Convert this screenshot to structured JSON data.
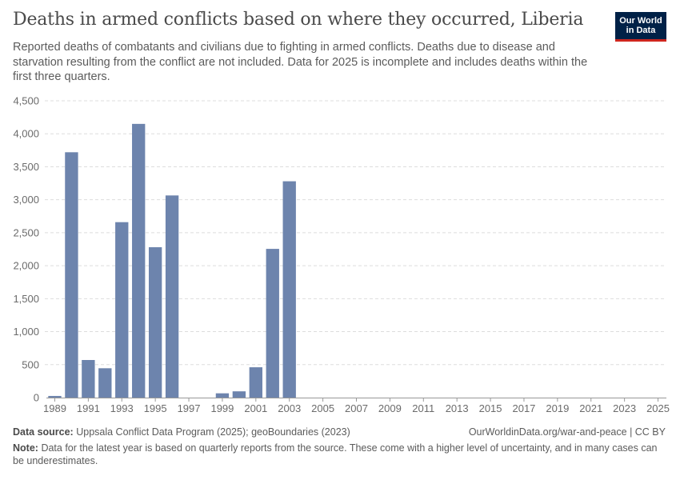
{
  "header": {
    "title": "Deaths in armed conflicts based on where they occurred, Liberia",
    "subtitle": "Reported deaths of combatants and civilians due to fighting in armed conflicts. Deaths due to disease and starvation resulting from the conflict are not included. Data for 2025 is incomplete and includes deaths within the first three quarters."
  },
  "logo": {
    "line1": "Our World",
    "line2": "in Data"
  },
  "footer": {
    "source_label": "Data source:",
    "source_text": "Uppsala Conflict Data Program (2025); geoBoundaries (2023)",
    "credit": "OurWorldinData.org/war-and-peace | CC BY",
    "note_label": "Note:",
    "note_text": "Data for the latest year is based on quarterly reports from the source. These come with a higher level of uncertainty, and in many cases can be underestimates."
  },
  "colors": {
    "bar": "#6d84ad",
    "grid": "#dddddd",
    "axis": "#999999"
  },
  "chart_data": {
    "type": "bar",
    "title": "Deaths in armed conflicts based on where they occurred, Liberia",
    "xlabel": "",
    "ylabel": "",
    "ylim": [
      0,
      4500
    ],
    "yticks": [
      0,
      500,
      1000,
      1500,
      2000,
      2500,
      3000,
      3500,
      4000,
      4500
    ],
    "ytick_labels": [
      "0",
      "500",
      "1,000",
      "1,500",
      "2,000",
      "2,500",
      "3,000",
      "3,500",
      "4,000",
      "4,500"
    ],
    "xtick_labels": [
      "1989",
      "1991",
      "1993",
      "1995",
      "1997",
      "1999",
      "2001",
      "2003",
      "2005",
      "2007",
      "2009",
      "2011",
      "2013",
      "2015",
      "2017",
      "2019",
      "2021",
      "2023",
      "2025"
    ],
    "grid": true,
    "categories": [
      "1989",
      "1990",
      "1991",
      "1992",
      "1993",
      "1994",
      "1995",
      "1996",
      "1997",
      "1998",
      "1999",
      "2000",
      "2001",
      "2002",
      "2003",
      "2004",
      "2005",
      "2006",
      "2007",
      "2008",
      "2009",
      "2010",
      "2011",
      "2012",
      "2013",
      "2014",
      "2015",
      "2016",
      "2017",
      "2018",
      "2019",
      "2020",
      "2021",
      "2022",
      "2023",
      "2024",
      "2025"
    ],
    "values": [
      25,
      3720,
      570,
      445,
      2660,
      4150,
      2280,
      3065,
      0,
      0,
      65,
      95,
      460,
      2255,
      3280,
      0,
      0,
      0,
      0,
      0,
      0,
      0,
      0,
      0,
      0,
      0,
      0,
      0,
      0,
      0,
      0,
      0,
      0,
      0,
      0,
      0,
      0
    ]
  }
}
